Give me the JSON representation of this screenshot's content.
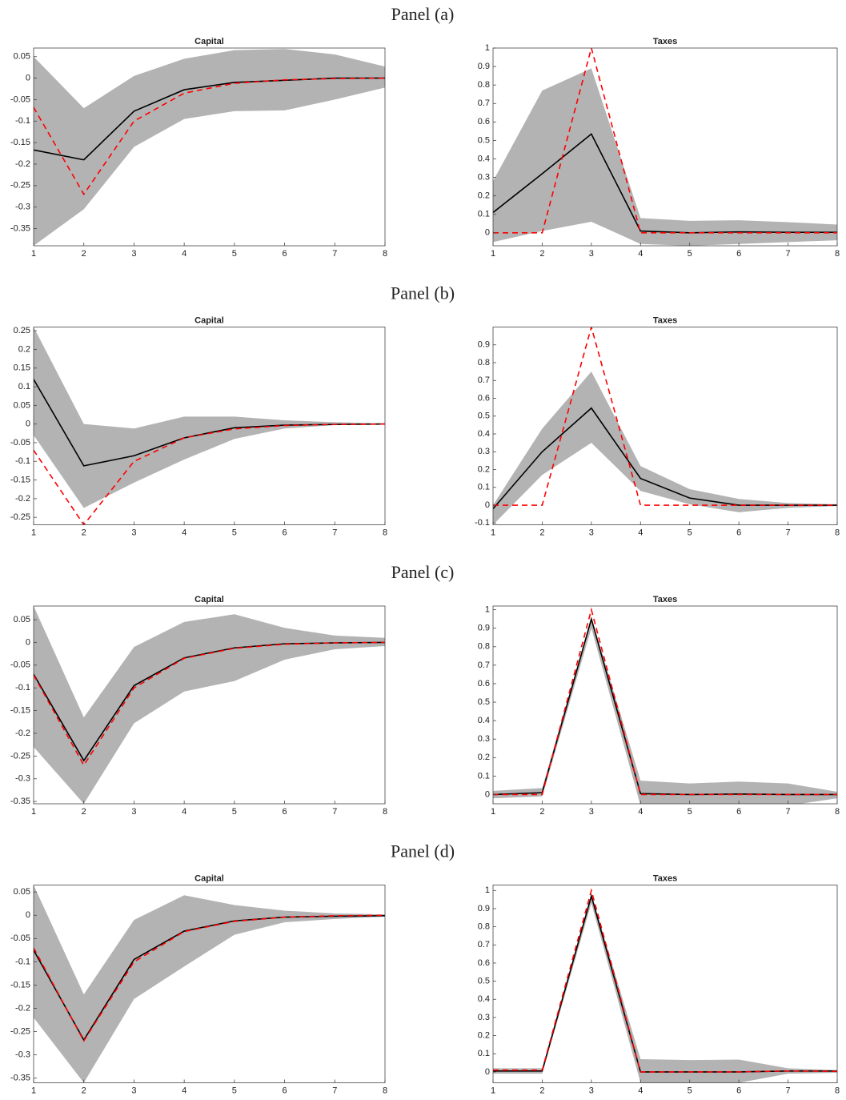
{
  "panels": [
    "Panel (a)",
    "Panel (b)",
    "Panel (c)",
    "Panel (d)"
  ],
  "chart_data": [
    {
      "type": "line",
      "title": "Capital",
      "x": [
        1,
        2,
        3,
        4,
        5,
        6,
        7,
        8
      ],
      "xlim": [
        1,
        8
      ],
      "xticks": [
        1,
        2,
        3,
        4,
        5,
        6,
        7,
        8
      ],
      "ylim": [
        -0.39,
        0.07
      ],
      "yticks": [
        -0.35,
        -0.3,
        -0.25,
        -0.2,
        -0.15,
        -0.1,
        -0.05,
        0,
        0.05
      ],
      "band": {
        "color": "#b3b3b3",
        "upper": [
          0.05,
          -0.07,
          0.005,
          0.045,
          0.065,
          0.068,
          0.055,
          0.027
        ],
        "lower": [
          -0.39,
          -0.305,
          -0.16,
          -0.095,
          -0.077,
          -0.075,
          -0.05,
          -0.022
        ]
      },
      "series": [
        {
          "color": "#000000",
          "dash": false,
          "values": [
            -0.167,
            -0.19,
            -0.077,
            -0.027,
            -0.01,
            -0.005,
            0,
            0
          ]
        },
        {
          "color": "#ff0000",
          "dash": true,
          "values": [
            -0.068,
            -0.27,
            -0.1,
            -0.035,
            -0.012,
            -0.004,
            -0.001,
            0
          ]
        }
      ]
    },
    {
      "type": "line",
      "title": "Taxes",
      "x": [
        1,
        2,
        3,
        4,
        5,
        6,
        7,
        8
      ],
      "xlim": [
        1,
        8
      ],
      "xticks": [
        1,
        2,
        3,
        4,
        5,
        6,
        7,
        8
      ],
      "ylim": [
        -0.07,
        1
      ],
      "yticks": [
        0,
        0.1,
        0.2,
        0.3,
        0.4,
        0.5,
        0.6,
        0.7,
        0.8,
        0.9,
        1
      ],
      "band": {
        "color": "#b3b3b3",
        "upper": [
          0.28,
          0.77,
          0.89,
          0.08,
          0.065,
          0.068,
          0.058,
          0.045
        ],
        "lower": [
          -0.05,
          0.01,
          0.06,
          -0.06,
          -0.07,
          -0.06,
          -0.05,
          -0.04
        ]
      },
      "series": [
        {
          "color": "#000000",
          "dash": false,
          "values": [
            0.11,
            0.32,
            0.535,
            0.01,
            0,
            0.005,
            0.003,
            0.003
          ]
        },
        {
          "color": "#ff0000",
          "dash": true,
          "values": [
            0,
            0,
            1,
            0,
            0,
            0,
            0,
            0
          ]
        }
      ]
    },
    {
      "type": "line",
      "title": "Capital",
      "x": [
        1,
        2,
        3,
        4,
        5,
        6,
        7,
        8
      ],
      "xlim": [
        1,
        8
      ],
      "xticks": [
        1,
        2,
        3,
        4,
        5,
        6,
        7,
        8
      ],
      "ylim": [
        -0.27,
        0.26
      ],
      "yticks": [
        -0.25,
        -0.2,
        -0.15,
        -0.1,
        -0.05,
        0,
        0.05,
        0.1,
        0.15,
        0.2,
        0.25
      ],
      "band": {
        "color": "#b3b3b3",
        "upper": [
          0.26,
          0,
          -0.012,
          0.02,
          0.02,
          0.01,
          0.005,
          0.002
        ],
        "lower": [
          -0.03,
          -0.225,
          -0.157,
          -0.095,
          -0.04,
          -0.012,
          -0.003,
          -0.001
        ]
      },
      "series": [
        {
          "color": "#000000",
          "dash": false,
          "values": [
            0.12,
            -0.112,
            -0.085,
            -0.037,
            -0.01,
            -0.003,
            -0.001,
            0
          ]
        },
        {
          "color": "#ff0000",
          "dash": true,
          "values": [
            -0.07,
            -0.27,
            -0.1,
            -0.037,
            -0.013,
            -0.004,
            -0.001,
            0
          ]
        }
      ]
    },
    {
      "type": "line",
      "title": "Taxes",
      "x": [
        1,
        2,
        3,
        4,
        5,
        6,
        7,
        8
      ],
      "xlim": [
        1,
        8
      ],
      "xticks": [
        1,
        2,
        3,
        4,
        5,
        6,
        7,
        8
      ],
      "ylim": [
        -0.11,
        1
      ],
      "yticks": [
        -0.1,
        0,
        0.1,
        0.2,
        0.3,
        0.4,
        0.5,
        0.6,
        0.7,
        0.8,
        0.9
      ],
      "band": {
        "color": "#b3b3b3",
        "upper": [
          0,
          0.43,
          0.75,
          0.22,
          0.09,
          0.035,
          0.012,
          0.005
        ],
        "lower": [
          -0.11,
          0.17,
          0.35,
          0.08,
          0.005,
          -0.04,
          -0.015,
          -0.005
        ]
      },
      "series": [
        {
          "color": "#000000",
          "dash": false,
          "values": [
            -0.02,
            0.3,
            0.545,
            0.15,
            0.04,
            0,
            0,
            0
          ]
        },
        {
          "color": "#ff0000",
          "dash": true,
          "values": [
            0,
            0,
            1,
            0,
            0,
            0,
            0,
            0
          ]
        }
      ]
    },
    {
      "type": "line",
      "title": "Capital",
      "x": [
        1,
        2,
        3,
        4,
        5,
        6,
        7,
        8
      ],
      "xlim": [
        1,
        8
      ],
      "xticks": [
        1,
        2,
        3,
        4,
        5,
        6,
        7,
        8
      ],
      "ylim": [
        -0.355,
        0.08
      ],
      "yticks": [
        -0.35,
        -0.3,
        -0.25,
        -0.2,
        -0.15,
        -0.1,
        -0.05,
        0,
        0.05
      ],
      "band": {
        "color": "#b3b3b3",
        "upper": [
          0.08,
          -0.165,
          -0.01,
          0.045,
          0.062,
          0.032,
          0.015,
          0.01
        ],
        "lower": [
          -0.23,
          -0.355,
          -0.178,
          -0.108,
          -0.085,
          -0.038,
          -0.015,
          -0.008
        ]
      },
      "series": [
        {
          "color": "#000000",
          "dash": false,
          "values": [
            -0.07,
            -0.26,
            -0.095,
            -0.034,
            -0.012,
            -0.003,
            -0.001,
            0
          ]
        },
        {
          "color": "#ff0000",
          "dash": true,
          "values": [
            -0.072,
            -0.27,
            -0.1,
            -0.035,
            -0.013,
            -0.004,
            -0.001,
            0
          ]
        }
      ]
    },
    {
      "type": "line",
      "title": "Taxes",
      "x": [
        1,
        2,
        3,
        4,
        5,
        6,
        7,
        8
      ],
      "xlim": [
        1,
        8
      ],
      "xticks": [
        1,
        2,
        3,
        4,
        5,
        6,
        7,
        8
      ],
      "ylim": [
        -0.05,
        1.02
      ],
      "yticks": [
        0,
        0.1,
        0.2,
        0.3,
        0.4,
        0.5,
        0.6,
        0.7,
        0.8,
        0.9,
        1
      ],
      "band": {
        "color": "#b3b3b3",
        "upper": [
          0.02,
          0.035,
          0.96,
          0.075,
          0.06,
          0.07,
          0.06,
          0.015
        ],
        "lower": [
          -0.02,
          -0.01,
          0.9,
          -0.06,
          -0.06,
          -0.06,
          -0.06,
          -0.02
        ]
      },
      "series": [
        {
          "color": "#000000",
          "dash": false,
          "values": [
            0,
            0.01,
            0.95,
            0.005,
            0,
            0.003,
            0,
            0
          ]
        },
        {
          "color": "#ff0000",
          "dash": true,
          "values": [
            0,
            0,
            1,
            0,
            0,
            0,
            0,
            0
          ]
        }
      ]
    },
    {
      "type": "line",
      "title": "Capital",
      "x": [
        1,
        2,
        3,
        4,
        5,
        6,
        7,
        8
      ],
      "xlim": [
        1,
        8
      ],
      "xticks": [
        1,
        2,
        3,
        4,
        5,
        6,
        7,
        8
      ],
      "ylim": [
        -0.36,
        0.065
      ],
      "yticks": [
        -0.35,
        -0.3,
        -0.25,
        -0.2,
        -0.15,
        -0.1,
        -0.05,
        0,
        0.05
      ],
      "band": {
        "color": "#b3b3b3",
        "upper": [
          0.065,
          -0.17,
          -0.01,
          0.043,
          0.022,
          0.01,
          0.004,
          0.002
        ],
        "lower": [
          -0.22,
          -0.36,
          -0.18,
          -0.11,
          -0.042,
          -0.015,
          -0.008,
          -0.003
        ]
      },
      "series": [
        {
          "color": "#000000",
          "dash": false,
          "values": [
            -0.075,
            -0.268,
            -0.095,
            -0.034,
            -0.012,
            -0.004,
            -0.002,
            -0.001
          ]
        },
        {
          "color": "#ff0000",
          "dash": true,
          "values": [
            -0.07,
            -0.27,
            -0.1,
            -0.035,
            -0.013,
            -0.004,
            -0.001,
            0
          ]
        }
      ]
    },
    {
      "type": "line",
      "title": "Taxes",
      "x": [
        1,
        2,
        3,
        4,
        5,
        6,
        7,
        8
      ],
      "xlim": [
        1,
        8
      ],
      "xticks": [
        1,
        2,
        3,
        4,
        5,
        6,
        7,
        8
      ],
      "ylim": [
        -0.06,
        1.03
      ],
      "yticks": [
        0,
        0.1,
        0.2,
        0.3,
        0.4,
        0.5,
        0.6,
        0.7,
        0.8,
        0.9,
        1
      ],
      "band": {
        "color": "#b3b3b3",
        "upper": [
          0.02,
          0.02,
          0.98,
          0.07,
          0.065,
          0.068,
          0.02,
          0.01
        ],
        "lower": [
          -0.01,
          -0.01,
          0.93,
          -0.06,
          -0.06,
          -0.06,
          -0.01,
          -0.005
        ]
      },
      "series": [
        {
          "color": "#000000",
          "dash": false,
          "values": [
            0.005,
            0.005,
            0.97,
            0,
            0,
            0,
            0.005,
            0.005
          ]
        },
        {
          "color": "#ff0000",
          "dash": true,
          "values": [
            0.01,
            0.01,
            1,
            0,
            0,
            0,
            0.005,
            0.003
          ]
        }
      ]
    }
  ]
}
